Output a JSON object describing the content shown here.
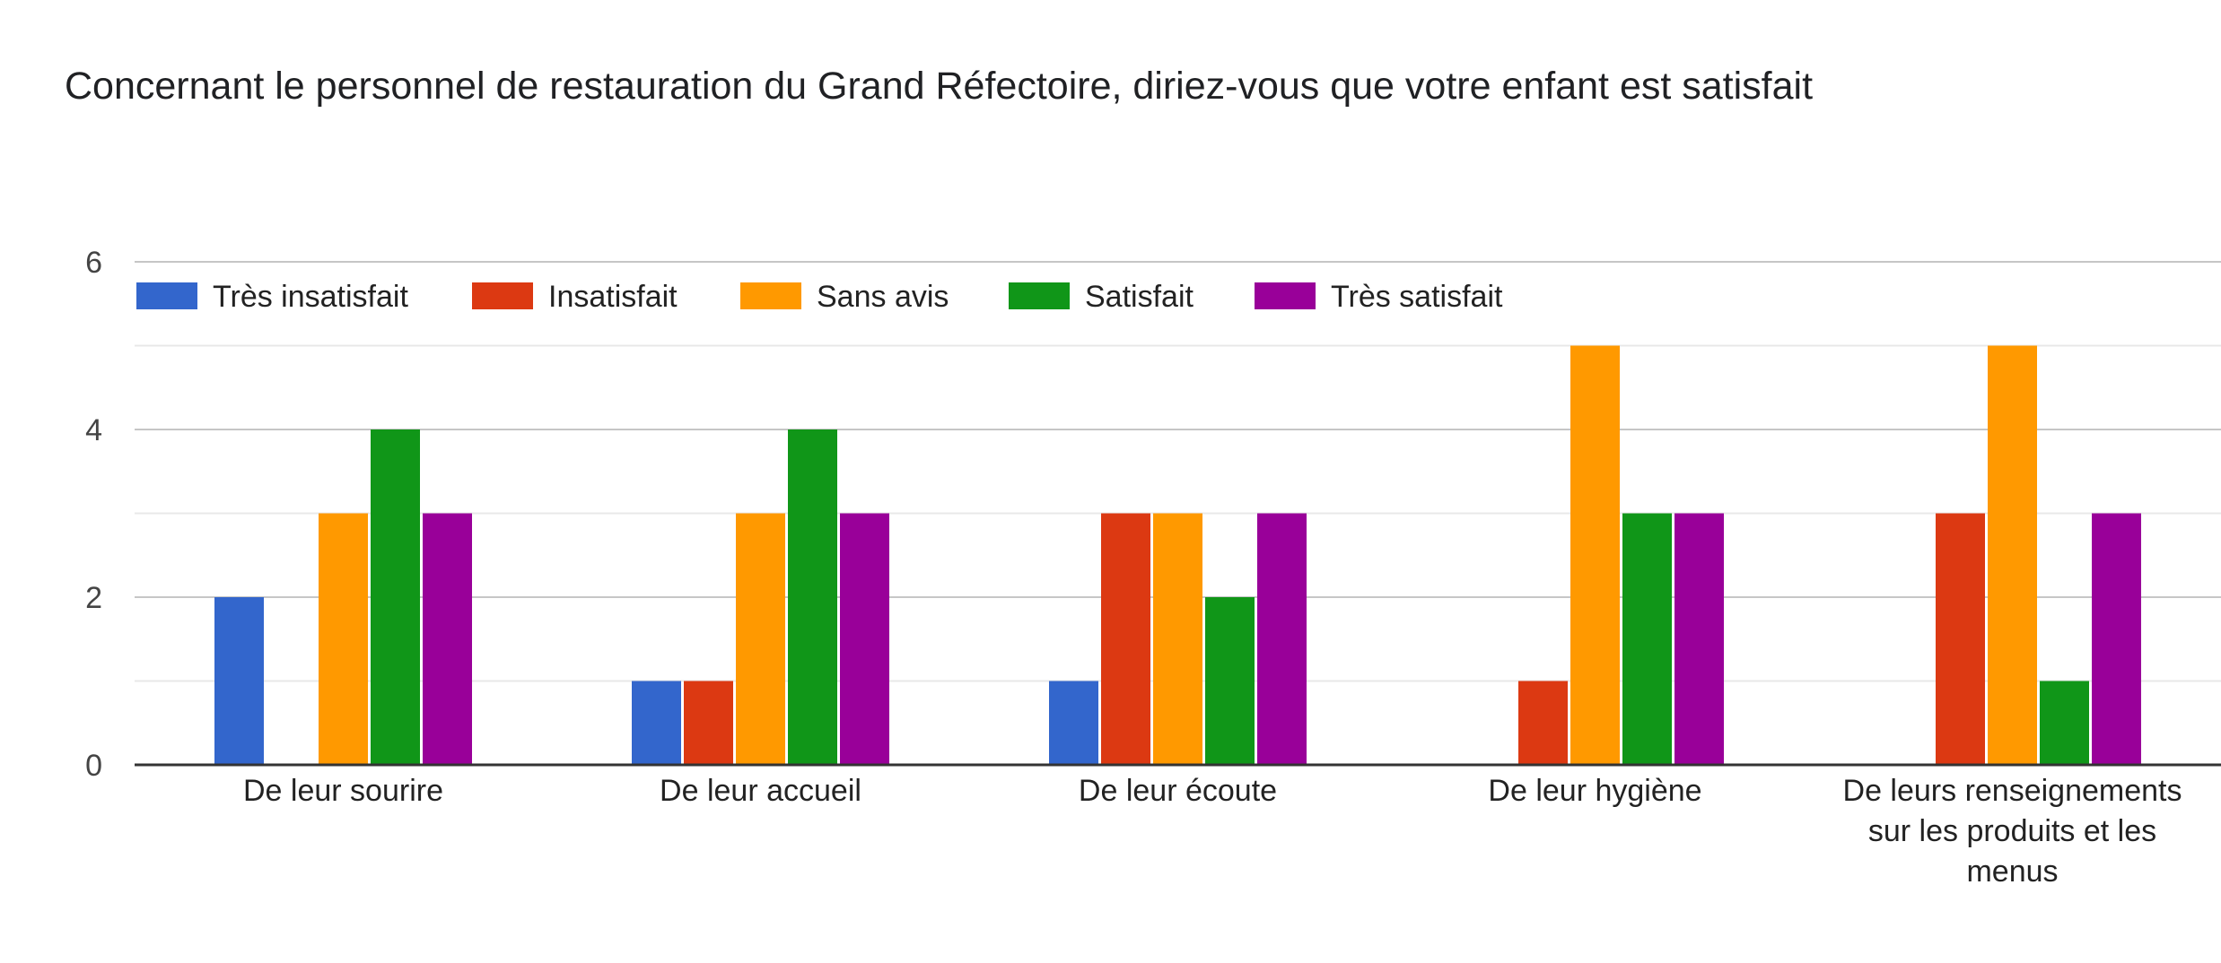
{
  "chart_data": {
    "type": "bar",
    "title": "Concernant le personnel de restauration du Grand Réfectoire, diriez-vous que votre enfant est satisfait",
    "categories": [
      [
        "De leur sourire"
      ],
      [
        "De leur accueil"
      ],
      [
        "De leur écoute"
      ],
      [
        "De leur hygiène"
      ],
      [
        "De leurs renseignements",
        "sur les produits et les",
        "menus"
      ]
    ],
    "series": [
      {
        "name": "Très insatisfait",
        "color": "#3366cc",
        "values": [
          2,
          1,
          1,
          0,
          0
        ]
      },
      {
        "name": "Insatisfait",
        "color": "#dc3912",
        "values": [
          0,
          1,
          3,
          1,
          3
        ]
      },
      {
        "name": "Sans avis",
        "color": "#ff9900",
        "values": [
          3,
          3,
          3,
          5,
          5
        ]
      },
      {
        "name": "Satisfait",
        "color": "#109618",
        "values": [
          4,
          4,
          2,
          3,
          1
        ]
      },
      {
        "name": "Très satisfait",
        "color": "#990099",
        "values": [
          3,
          3,
          3,
          3,
          3
        ]
      }
    ],
    "ylim": [
      0,
      6
    ],
    "yticks": [
      0,
      2,
      4,
      6
    ],
    "grid": true,
    "legend": "top-left"
  }
}
